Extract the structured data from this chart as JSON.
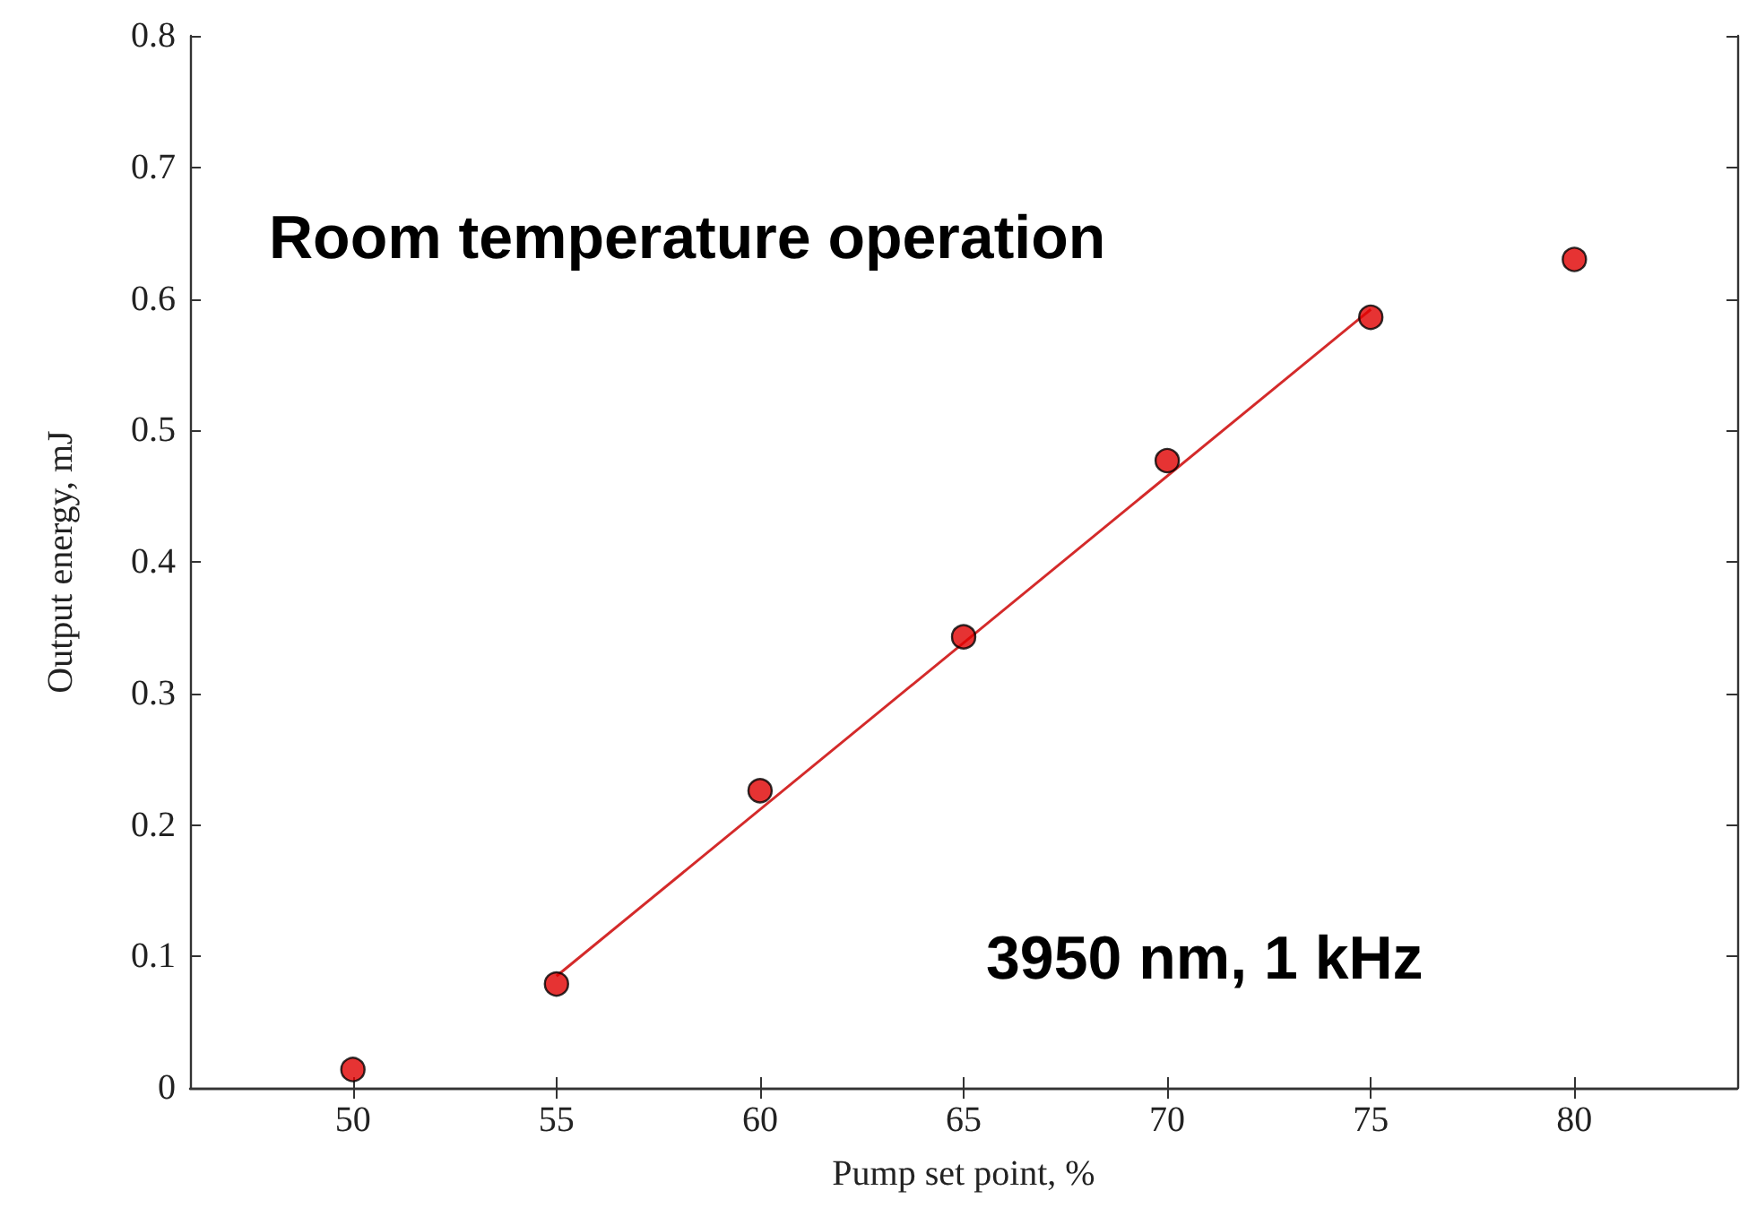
{
  "chart_data": {
    "type": "scatter",
    "xlabel": "Pump set point, %",
    "ylabel": "Output energy, mJ",
    "x": [
      50,
      55,
      60,
      65,
      70,
      75,
      80
    ],
    "series": [
      {
        "color": "#e00000",
        "values": [
          0.014,
          0.079,
          0.226,
          0.343,
          0.477,
          0.586,
          0.63
        ]
      },
      {
        "type": "line",
        "marker": "none",
        "color": "#d42a2a",
        "x": [
          55,
          75
        ],
        "values": [
          0.085,
          0.592
        ]
      }
    ],
    "xlim": [
      46,
      84
    ],
    "xticks": [
      50,
      55,
      60,
      65,
      70,
      75,
      80
    ],
    "ylim": [
      0,
      0.8
    ],
    "yticks": [
      0,
      0.1,
      0.2,
      0.3,
      0.4,
      0.5,
      0.6,
      0.7,
      0.8
    ],
    "marker": "circle",
    "grid": false,
    "annotations": [
      "Room temperature operation",
      "3950 nm, 1 kHz"
    ]
  }
}
